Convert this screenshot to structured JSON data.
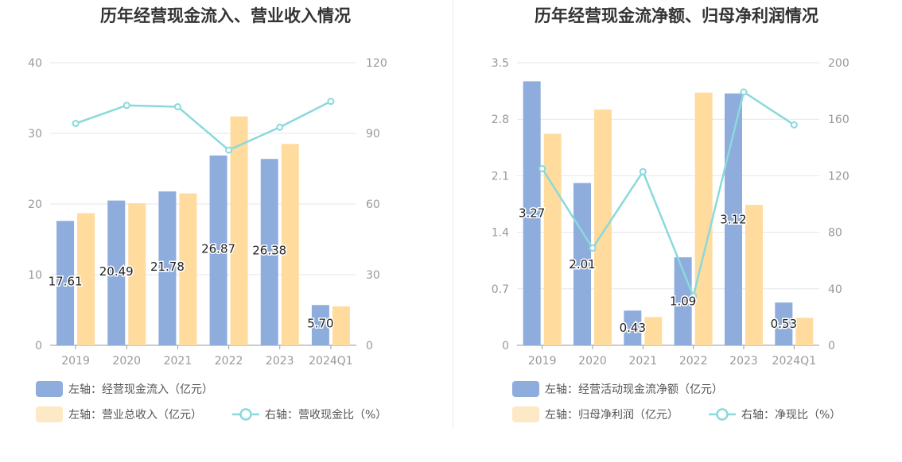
{
  "colors": {
    "bar_a": "#8eaddc",
    "bar_b": "#ffdb9e",
    "legend_bar_b": "#fde9c6",
    "line": "#8ad9dc",
    "grid": "#e3e6ee",
    "axis": "#999999",
    "tick_text": "#999999",
    "label_text": "#222222"
  },
  "chart_data": [
    {
      "type": "bar",
      "title": "历年经营现金流入、营业收入情况",
      "categories": [
        "2019",
        "2020",
        "2021",
        "2022",
        "2023",
        "2024Q1"
      ],
      "left_axis": {
        "ylim": [
          0,
          40
        ],
        "ticks": [
          "0",
          "10",
          "20",
          "30",
          "40"
        ]
      },
      "right_axis": {
        "ylim": [
          0,
          120
        ],
        "ticks": [
          "0",
          "30",
          "60",
          "90",
          "120"
        ]
      },
      "grid": true,
      "legend_position": "bottom-left",
      "series": [
        {
          "name": "左轴：经营现金流入（亿元）",
          "type": "bar",
          "axis": "left",
          "values": [
            17.61,
            20.49,
            21.78,
            26.87,
            26.38,
            5.7
          ],
          "labels": [
            "17.61",
            "20.49",
            "21.78",
            "26.87",
            "26.38",
            "5.70"
          ]
        },
        {
          "name": "左轴：营业总收入（亿元）",
          "type": "bar",
          "axis": "left",
          "values": [
            18.7,
            20.1,
            21.5,
            32.4,
            28.5,
            5.5
          ]
        },
        {
          "name": "右轴：营收现金比（%）",
          "type": "line",
          "axis": "right",
          "values": [
            94.2,
            101.9,
            101.3,
            82.9,
            92.6,
            103.6
          ]
        }
      ]
    },
    {
      "type": "bar",
      "title": "历年经营现金流净额、归母净利润情况",
      "categories": [
        "2019",
        "2020",
        "2021",
        "2022",
        "2023",
        "2024Q1"
      ],
      "left_axis": {
        "ylim": [
          0,
          3.5
        ],
        "ticks": [
          "0",
          "0.7",
          "1.4",
          "2.1",
          "2.8",
          "3.5"
        ]
      },
      "right_axis": {
        "ylim": [
          0,
          200
        ],
        "ticks": [
          "0",
          "40",
          "80",
          "120",
          "160",
          "200"
        ]
      },
      "grid": true,
      "legend_position": "bottom-left",
      "series": [
        {
          "name": "左轴：经营活动现金流净额（亿元）",
          "type": "bar",
          "axis": "left",
          "values": [
            3.27,
            2.01,
            0.43,
            1.09,
            3.12,
            0.53
          ],
          "labels": [
            "3.27",
            "2.01",
            "0.43",
            "1.09",
            "3.12",
            "0.53"
          ]
        },
        {
          "name": "左轴：归母净利润（亿元）",
          "type": "bar",
          "axis": "left",
          "values": [
            2.62,
            2.92,
            0.35,
            3.13,
            1.74,
            0.34
          ]
        },
        {
          "name": "右轴：净现比（%）",
          "type": "line",
          "axis": "right",
          "values": [
            125,
            68.8,
            122.9,
            34.8,
            179.3,
            156
          ]
        }
      ]
    }
  ]
}
